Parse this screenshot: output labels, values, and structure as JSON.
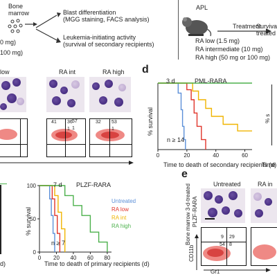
{
  "top_left": {
    "bone_marrow": [
      "Bone",
      "marrow"
    ],
    "dose_fragments": [
      "0 mg)",
      "100 mg)"
    ],
    "outcomes": [
      [
        "Blast differentiation",
        "(MGG staining, FACS analysis)"
      ],
      [
        "Leukemia-initiating activity",
        "(survival of secondary recipients)"
      ]
    ]
  },
  "top_right": {
    "model": "APL",
    "treatment_label": "Treatment",
    "survival_label": [
      "Surviva",
      "treated r"
    ],
    "doses": [
      "RA low (1.5 mg)",
      "RA intermediate (10 mg)",
      "RA high (50 mg or 100 mg)"
    ]
  },
  "panel_c": {
    "labels": [
      "low",
      "RA int",
      "RA high"
    ],
    "quadrants": [
      {
        "tl": "",
        "tr": "",
        "br": ""
      },
      {
        "tl": "41",
        "tr": "36",
        "br": "1"
      },
      {
        "tl": "57",
        "tr": "",
        "br": "1"
      }
    ],
    "quadrants_full": [
      {
        "q1": "41",
        "q2": "36",
        "q4": "1"
      },
      {
        "q1": "57",
        "q2": "",
        "q4": "1"
      },
      {
        "q1": "32",
        "q2": "53",
        "q4": "1"
      }
    ]
  },
  "panel_d": {
    "letter": "d",
    "day_label": "3 d",
    "title": "PML-RARA",
    "ylabel": "% survival",
    "xlabel": "Time to death of secondary recipients (d)",
    "n_label": "n ≥ 14",
    "right_clip_ylabel": "% s",
    "right_clip_xlabel": "Time t"
  },
  "panel_bottom_left": {
    "day_label": "7 d",
    "title": "PLZF-RARA",
    "ylabel": "% survival",
    "xlabel": "Time to death of primary recipients (d)",
    "n_label": "n ≥ 7",
    "left_clip_xlabel": "d)",
    "legend": [
      {
        "name": "Untreated",
        "color": "#5b8fd8"
      },
      {
        "name": "RA low",
        "color": "#e0342a"
      },
      {
        "name": "RA int",
        "color": "#f0b400"
      },
      {
        "name": "RA high",
        "color": "#4bb04b"
      }
    ]
  },
  "panel_e": {
    "letter": "e",
    "labels": [
      "Untreated",
      "RA in"
    ],
    "side_label": "Bone marrow 3-d-treated",
    "side_label2": "PLZF-RARA",
    "axis_y": "CD11b",
    "axis_x": "Gr1",
    "quadrants": {
      "q1": "9",
      "q2": "29",
      "q3": "54",
      "q4": "8"
    }
  },
  "chart_data": [
    {
      "type": "line",
      "title": "PML-RARA",
      "xlabel": "Time to death of secondary recipients (d)",
      "ylabel": "% survival",
      "xlim": [
        0,
        65
      ],
      "ylim": [
        0,
        100
      ],
      "x_ticks": [
        0,
        20,
        40,
        60
      ],
      "series": [
        {
          "color": "#5b8fd8",
          "points": [
            [
              0,
              100
            ],
            [
              14,
              100
            ],
            [
              14,
              85
            ],
            [
              16,
              85
            ],
            [
              16,
              60
            ],
            [
              17,
              60
            ],
            [
              17,
              35
            ],
            [
              18,
              35
            ],
            [
              18,
              15
            ],
            [
              19,
              15
            ],
            [
              19,
              0
            ]
          ]
        },
        {
          "color": "#e0342a",
          "points": [
            [
              0,
              100
            ],
            [
              20,
              100
            ],
            [
              20,
              90
            ],
            [
              23,
              90
            ],
            [
              23,
              75
            ],
            [
              25,
              75
            ],
            [
              25,
              55
            ],
            [
              27,
              55
            ],
            [
              27,
              35
            ],
            [
              30,
              35
            ],
            [
              30,
              15
            ],
            [
              33,
              15
            ],
            [
              33,
              0
            ]
          ]
        },
        {
          "color": "#f0b400",
          "points": [
            [
              0,
              100
            ],
            [
              24,
              100
            ],
            [
              24,
              88
            ],
            [
              28,
              88
            ],
            [
              28,
              75
            ],
            [
              33,
              75
            ],
            [
              33,
              62
            ],
            [
              37,
              62
            ],
            [
              37,
              50
            ],
            [
              45,
              50
            ],
            [
              45,
              38
            ],
            [
              55,
              38
            ],
            [
              55,
              28
            ],
            [
              65,
              28
            ]
          ]
        },
        {
          "color": "#4bb04b",
          "points": [
            [
              0,
              100
            ],
            [
              65,
              100
            ]
          ]
        }
      ]
    },
    {
      "type": "line",
      "title": "PLZF-RARA",
      "xlabel": "Time to death of primary recipients (d)",
      "ylabel": "% survival",
      "xlim": [
        0,
        85
      ],
      "ylim": [
        0,
        100
      ],
      "x_ticks": [
        0,
        20,
        40,
        60,
        80
      ],
      "y_ticks": [
        0,
        50,
        100
      ],
      "series": [
        {
          "name": "Untreated",
          "color": "#5b8fd8",
          "points": [
            [
              0,
              100
            ],
            [
              12,
              100
            ],
            [
              12,
              80
            ],
            [
              14,
              80
            ],
            [
              14,
              55
            ],
            [
              16,
              55
            ],
            [
              16,
              28
            ],
            [
              18,
              28
            ],
            [
              18,
              0
            ]
          ]
        },
        {
          "name": "RA low",
          "color": "#e0342a",
          "points": [
            [
              0,
              100
            ],
            [
              15,
              100
            ],
            [
              15,
              80
            ],
            [
              18,
              80
            ],
            [
              18,
              55
            ],
            [
              21,
              55
            ],
            [
              21,
              28
            ],
            [
              24,
              28
            ],
            [
              24,
              0
            ]
          ]
        },
        {
          "name": "RA int",
          "color": "#f0b400",
          "points": [
            [
              0,
              100
            ],
            [
              18,
              100
            ],
            [
              18,
              85
            ],
            [
              22,
              85
            ],
            [
              22,
              60
            ],
            [
              26,
              60
            ],
            [
              26,
              35
            ],
            [
              30,
              35
            ],
            [
              30,
              0
            ]
          ]
        },
        {
          "name": "RA high",
          "color": "#4bb04b",
          "points": [
            [
              0,
              100
            ],
            [
              30,
              100
            ],
            [
              30,
              85
            ],
            [
              40,
              85
            ],
            [
              40,
              70
            ],
            [
              50,
              70
            ],
            [
              50,
              55
            ],
            [
              60,
              55
            ],
            [
              60,
              30
            ],
            [
              70,
              30
            ],
            [
              70,
              15
            ],
            [
              80,
              15
            ],
            [
              80,
              0
            ]
          ]
        }
      ]
    }
  ]
}
